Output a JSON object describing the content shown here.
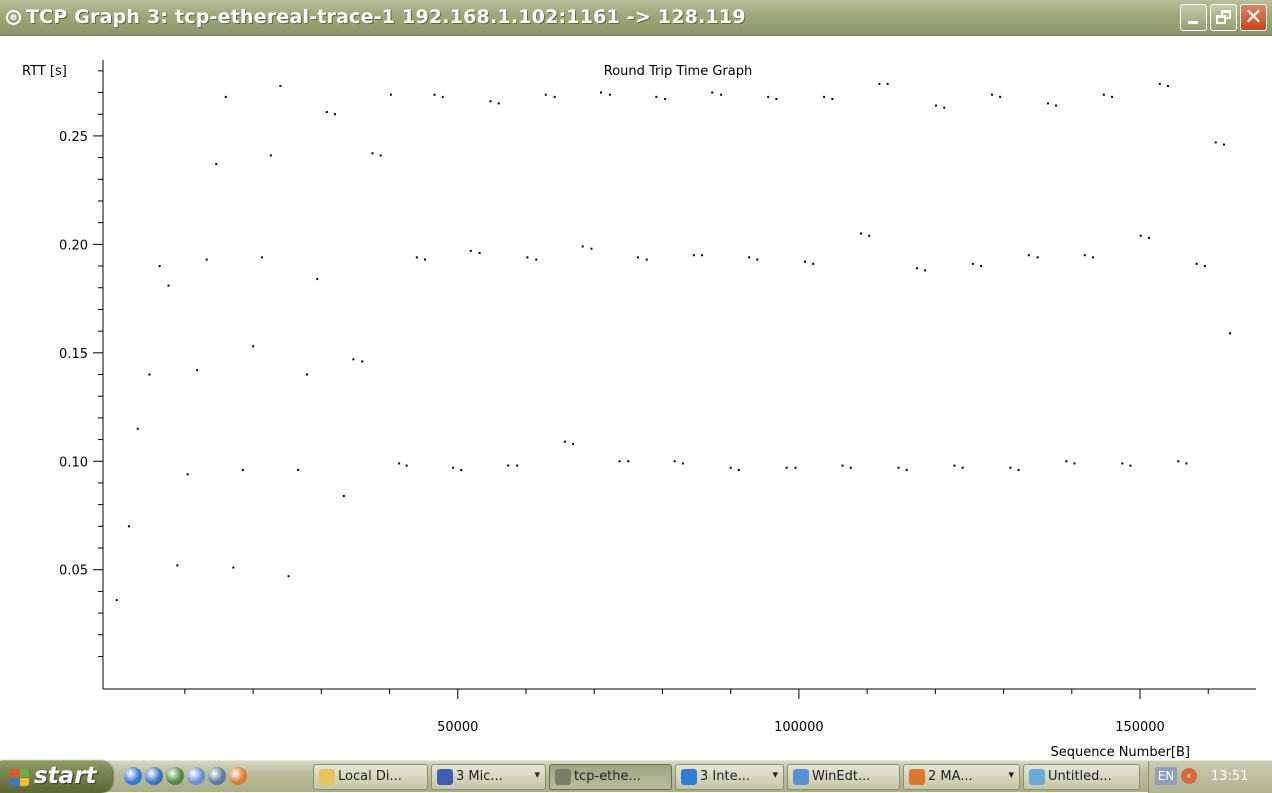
{
  "window": {
    "title": "TCP Graph 3: tcp-ethereal-trace-1 192.168.1.102:1161 -> 128.119",
    "icon": "ethereal-icon",
    "controls": [
      "minimize",
      "restore",
      "close"
    ]
  },
  "chart_data": {
    "type": "scatter",
    "title": "Round Trip Time Graph",
    "ylabel": "RTT [s]",
    "xlabel": "Sequence Number[B]",
    "xlim": [
      -2000,
      167000
    ],
    "ylim": [
      -0.005,
      0.285
    ],
    "xticks": [
      50000,
      100000,
      150000
    ],
    "xtick_labels": [
      "50000",
      "100000",
      "150000"
    ],
    "yticks": [
      0.05,
      0.1,
      0.15,
      0.2,
      0.25
    ],
    "ytick_labels": [
      "0.05",
      "0.10",
      "0.15",
      "0.20",
      "0.25"
    ],
    "grid": false,
    "series": [
      {
        "points": [
          [
            0,
            0.036
          ],
          [
            1800,
            0.07
          ],
          [
            3100,
            0.115
          ],
          [
            4800,
            0.14
          ],
          [
            6300,
            0.19
          ],
          [
            7600,
            0.181
          ],
          [
            8900,
            0.052
          ],
          [
            10400,
            0.094
          ],
          [
            11800,
            0.142
          ],
          [
            13200,
            0.193
          ],
          [
            14600,
            0.237
          ],
          [
            16000,
            0.268
          ],
          [
            17100,
            0.051
          ],
          [
            18500,
            0.096
          ],
          [
            20000,
            0.153
          ],
          [
            21300,
            0.194
          ],
          [
            22600,
            0.241
          ],
          [
            24000,
            0.273
          ],
          [
            25200,
            0.047
          ],
          [
            26600,
            0.096
          ],
          [
            27900,
            0.14
          ],
          [
            29400,
            0.184
          ],
          [
            30800,
            0.261
          ],
          [
            32000,
            0.26
          ],
          [
            33300,
            0.084
          ],
          [
            34700,
            0.147
          ],
          [
            36000,
            0.146
          ],
          [
            37500,
            0.242
          ],
          [
            38700,
            0.241
          ],
          [
            40200,
            0.269
          ],
          [
            41400,
            0.099
          ],
          [
            42500,
            0.098
          ],
          [
            44000,
            0.194
          ],
          [
            45200,
            0.193
          ],
          [
            46600,
            0.269
          ],
          [
            47800,
            0.268
          ],
          [
            49300,
            0.097
          ],
          [
            50500,
            0.096
          ],
          [
            51900,
            0.197
          ],
          [
            53200,
            0.196
          ],
          [
            54800,
            0.266
          ],
          [
            56000,
            0.265
          ],
          [
            57400,
            0.098
          ],
          [
            58700,
            0.098
          ],
          [
            60200,
            0.194
          ],
          [
            61500,
            0.193
          ],
          [
            62900,
            0.269
          ],
          [
            64200,
            0.268
          ],
          [
            65700,
            0.109
          ],
          [
            66900,
            0.108
          ],
          [
            68300,
            0.199
          ],
          [
            69600,
            0.198
          ],
          [
            71000,
            0.27
          ],
          [
            72300,
            0.269
          ],
          [
            73700,
            0.1
          ],
          [
            75000,
            0.1
          ],
          [
            76400,
            0.194
          ],
          [
            77700,
            0.193
          ],
          [
            79100,
            0.268
          ],
          [
            80400,
            0.267
          ],
          [
            81800,
            0.1
          ],
          [
            83000,
            0.099
          ],
          [
            84600,
            0.195
          ],
          [
            85800,
            0.195
          ],
          [
            87300,
            0.27
          ],
          [
            88600,
            0.269
          ],
          [
            90000,
            0.097
          ],
          [
            91200,
            0.096
          ],
          [
            92700,
            0.194
          ],
          [
            93900,
            0.193
          ],
          [
            95500,
            0.268
          ],
          [
            96700,
            0.267
          ],
          [
            98200,
            0.097
          ],
          [
            99500,
            0.097
          ],
          [
            100900,
            0.192
          ],
          [
            102100,
            0.191
          ],
          [
            103700,
            0.268
          ],
          [
            104900,
            0.267
          ],
          [
            106400,
            0.098
          ],
          [
            107600,
            0.097
          ],
          [
            109100,
            0.205
          ],
          [
            110300,
            0.204
          ],
          [
            111800,
            0.274
          ],
          [
            113000,
            0.274
          ],
          [
            114600,
            0.097
          ],
          [
            115800,
            0.096
          ],
          [
            117300,
            0.189
          ],
          [
            118500,
            0.188
          ],
          [
            120100,
            0.264
          ],
          [
            121300,
            0.263
          ],
          [
            122800,
            0.098
          ],
          [
            124000,
            0.097
          ],
          [
            125500,
            0.191
          ],
          [
            126700,
            0.19
          ],
          [
            128300,
            0.269
          ],
          [
            129500,
            0.268
          ],
          [
            131000,
            0.097
          ],
          [
            132200,
            0.096
          ],
          [
            133700,
            0.195
          ],
          [
            135000,
            0.194
          ],
          [
            136500,
            0.265
          ],
          [
            137700,
            0.264
          ],
          [
            139200,
            0.1
          ],
          [
            140400,
            0.099
          ],
          [
            141900,
            0.195
          ],
          [
            143100,
            0.194
          ],
          [
            144700,
            0.269
          ],
          [
            145900,
            0.268
          ],
          [
            147400,
            0.099
          ],
          [
            148600,
            0.098
          ],
          [
            150100,
            0.204
          ],
          [
            151300,
            0.203
          ],
          [
            152900,
            0.274
          ],
          [
            154100,
            0.273
          ],
          [
            155600,
            0.1
          ],
          [
            156800,
            0.099
          ],
          [
            158300,
            0.191
          ],
          [
            159500,
            0.19
          ],
          [
            161100,
            0.247
          ],
          [
            162300,
            0.246
          ],
          [
            163200,
            0.159
          ]
        ]
      }
    ]
  },
  "taskbar": {
    "start_label": "start",
    "tasks": [
      {
        "label": "Local Di...",
        "icon": "folder-icon",
        "color": "#e8c35a"
      },
      {
        "label": "3 Mic...",
        "icon": "word-icon",
        "color": "#3d5fb3",
        "dropdown": "▾"
      },
      {
        "label": "tcp-ethe...",
        "icon": "ethereal-icon",
        "color": "#7b7e66",
        "dropdown": ""
      },
      {
        "label": "3 Inte...",
        "icon": "ie-icon",
        "color": "#2f7bd6",
        "dropdown": "▾"
      },
      {
        "label": "WinEdt...",
        "icon": "winedt-icon",
        "color": "#5b8fd8",
        "dropdown": ""
      },
      {
        "label": "2 MA...",
        "icon": "matlab-icon",
        "color": "#d9782e",
        "dropdown": "▾"
      },
      {
        "label": "Untitled...",
        "icon": "notepad-icon",
        "color": "#6aa8d8",
        "dropdown": ""
      }
    ],
    "quick_launch": [
      {
        "name": "ie-icon",
        "color": "#2f7bd6"
      },
      {
        "name": "outlook-icon",
        "color": "#3a72c4"
      },
      {
        "name": "ultraedit-icon",
        "color": "#4a8a3a"
      },
      {
        "name": "desktop-icon",
        "color": "#6a8fd0"
      },
      {
        "name": "network-icon",
        "color": "#5b7a9a"
      },
      {
        "name": "firefox-icon",
        "color": "#e07a2a"
      }
    ],
    "tray": {
      "language": "EN",
      "clock": "13:51"
    }
  }
}
